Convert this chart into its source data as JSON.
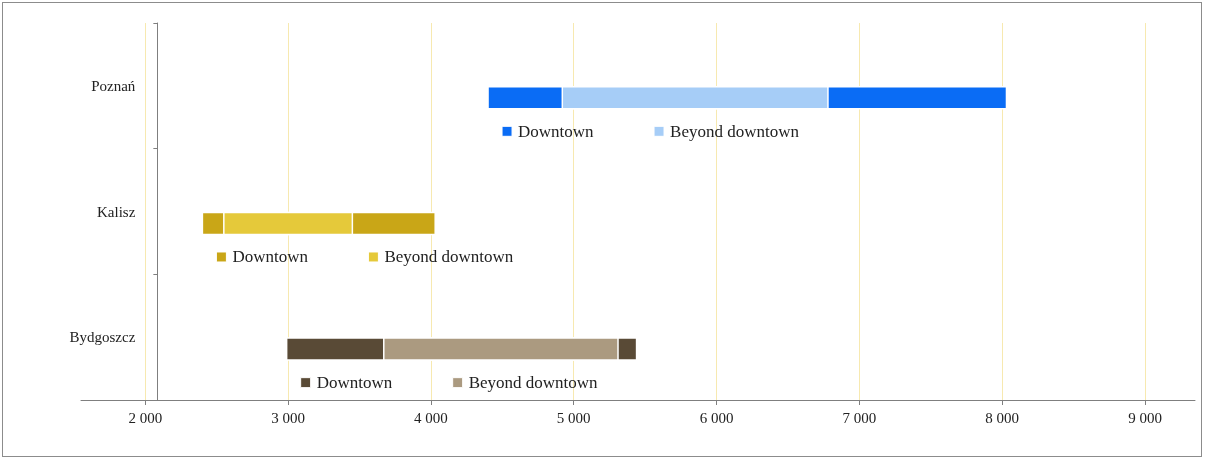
{
  "chart_data": {
    "type": "bar",
    "orientation": "horizontal",
    "categories": [
      "Poznań",
      "Kalisz",
      "Bydgoszcz"
    ],
    "series": [
      {
        "name": "Downtown",
        "color": "#0a6cf5",
        "values": [
          3630,
          null,
          null
        ],
        "base": [
          4400,
          null,
          null
        ]
      },
      {
        "name": "Beyond downtown",
        "color": "#a6cdf7",
        "values": [
          1860,
          null,
          null
        ],
        "base": [
          4920,
          null,
          null
        ]
      },
      {
        "name": "Downtown",
        "color": "#c9a617",
        "values": [
          null,
          1630,
          null
        ],
        "base": [
          null,
          2400,
          null
        ]
      },
      {
        "name": "Beyond downtown",
        "color": "#e5c93a",
        "values": [
          null,
          900,
          null
        ],
        "base": [
          null,
          2550,
          null
        ]
      },
      {
        "name": "Downtown",
        "color": "#594a36",
        "values": [
          null,
          null,
          2450
        ],
        "base": [
          null,
          null,
          2990
        ]
      },
      {
        "name": "Beyond downtown",
        "color": "#ab9a80",
        "values": [
          null,
          null,
          1640
        ],
        "base": [
          null,
          null,
          3670
        ]
      }
    ],
    "xlim": [
      1550,
      9350
    ],
    "xticks": [
      {
        "value": 2000,
        "label": "2 000"
      },
      {
        "value": 3000,
        "label": "3 000"
      },
      {
        "value": 4000,
        "label": "4 000"
      },
      {
        "value": 5000,
        "label": "5 000"
      },
      {
        "value": 6000,
        "label": "6 000"
      },
      {
        "value": 7000,
        "label": "7 000"
      },
      {
        "value": 8000,
        "label": "8 000"
      },
      {
        "value": 9000,
        "label": "9 000"
      }
    ],
    "grid": "x",
    "legend": "bottom"
  }
}
